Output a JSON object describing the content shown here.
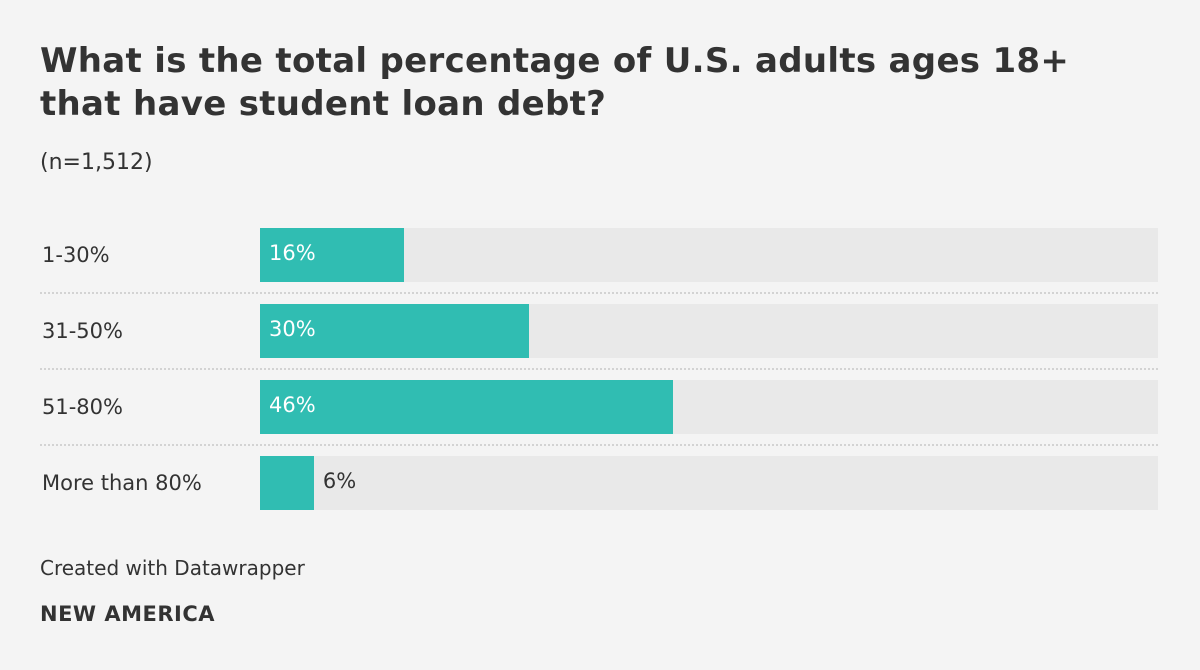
{
  "chart_data": {
    "type": "bar",
    "orientation": "horizontal",
    "title": "What is the total percentage of U.S. adults ages 18+ that have student loan debt?",
    "subtitle": "(n=1,512)",
    "categories": [
      "1-30%",
      "31-50%",
      "51-80%",
      "More than 80%"
    ],
    "values": [
      16,
      30,
      46,
      6
    ],
    "value_labels": [
      "16%",
      "30%",
      "46%",
      "6%"
    ],
    "xlim": [
      0,
      100
    ],
    "bar_color": "#30bdb2",
    "track_color": "#e9e9e9"
  },
  "footer": {
    "credit": "Created with Datawrapper",
    "brand": "NEW AMERICA"
  }
}
